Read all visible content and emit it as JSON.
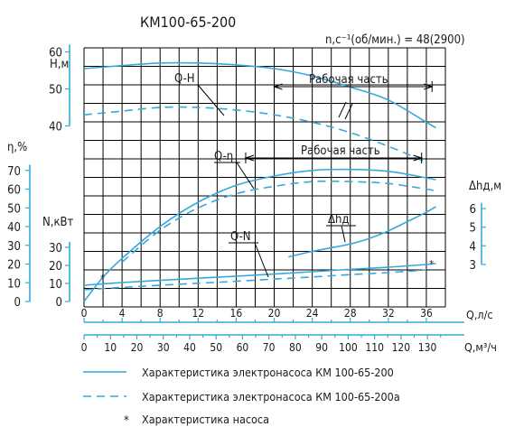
{
  "title": "КМ100-65-200",
  "speed_label": "n,с⁻¹(об/мин.) = 48(2900)",
  "chart_data": {
    "type": "line",
    "x": {
      "label_q_ls": "Q,л/с",
      "label_q_m3h": "Q,м³/ч",
      "range_ls": [
        0,
        38
      ],
      "ticks_ls": [
        "0",
        "4",
        "8",
        "12",
        "16",
        "20",
        "24",
        "28",
        "32",
        "36"
      ],
      "ticks_m3h": [
        "0",
        "10",
        "20",
        "30",
        "40",
        "50",
        "60",
        "70",
        "80",
        "90",
        "100",
        "110",
        "120",
        "130"
      ]
    },
    "axes": {
      "H": {
        "label": "H,м",
        "ticks": [
          "60",
          "50",
          "40"
        ]
      },
      "eta": {
        "label": "η,%",
        "ticks": [
          "70",
          "60",
          "50",
          "40",
          "30",
          "20",
          "10",
          "0"
        ]
      },
      "N": {
        "label": "N,кВт",
        "ticks": [
          "30",
          "20",
          "10",
          "0"
        ]
      },
      "dh": {
        "label": "Δhд,м",
        "ticks": [
          "6",
          "5",
          "4",
          "3"
        ]
      }
    },
    "grid": true,
    "series": [
      {
        "name": "Q-H",
        "style": "solid",
        "points": [
          [
            0,
            55.5
          ],
          [
            4,
            56.3
          ],
          [
            8,
            57
          ],
          [
            12,
            57
          ],
          [
            16,
            56.5
          ],
          [
            20,
            55.5
          ],
          [
            24,
            53.5
          ],
          [
            28,
            50.5
          ],
          [
            32,
            47
          ],
          [
            36,
            41
          ],
          [
            37,
            39.5
          ]
        ]
      },
      {
        "name": "Q-H",
        "style": "dashed",
        "points": [
          [
            0,
            43
          ],
          [
            4,
            44
          ],
          [
            8,
            45
          ],
          [
            12,
            45
          ],
          [
            16,
            44.3
          ],
          [
            20,
            43
          ],
          [
            24,
            41
          ],
          [
            28,
            38.2
          ],
          [
            32,
            34.5
          ],
          [
            35,
            31.3
          ],
          [
            36,
            30
          ]
        ]
      },
      {
        "name": "Q-η",
        "style": "solid",
        "points": [
          [
            0,
            0
          ],
          [
            2,
            13
          ],
          [
            4,
            23
          ],
          [
            8,
            40
          ],
          [
            12,
            53
          ],
          [
            16,
            62
          ],
          [
            20,
            67
          ],
          [
            24,
            70
          ],
          [
            28,
            70.5
          ],
          [
            32,
            69.5
          ],
          [
            36,
            66
          ],
          [
            37,
            65
          ]
        ]
      },
      {
        "name": "Q-η",
        "style": "dashed",
        "points": [
          [
            4,
            21
          ],
          [
            8,
            38
          ],
          [
            12,
            50
          ],
          [
            16,
            57.5
          ],
          [
            20,
            61.5
          ],
          [
            24,
            64
          ],
          [
            28,
            64
          ],
          [
            32,
            63
          ],
          [
            36,
            60
          ],
          [
            37,
            59
          ]
        ]
      },
      {
        "name": "Q-N",
        "style": "solid",
        "points": [
          [
            0,
            9
          ],
          [
            4,
            10.5
          ],
          [
            8,
            11.7
          ],
          [
            12,
            12.9
          ],
          [
            16,
            14
          ],
          [
            20,
            15.2
          ],
          [
            24,
            16.5
          ],
          [
            28,
            17.8
          ],
          [
            32,
            19
          ],
          [
            36,
            20.5
          ],
          [
            37,
            21
          ]
        ]
      },
      {
        "name": "Q-N",
        "style": "dashed",
        "points": [
          [
            0,
            6.5
          ],
          [
            4,
            7.8
          ],
          [
            8,
            9
          ],
          [
            12,
            10.1
          ],
          [
            16,
            11.2
          ],
          [
            20,
            12.4
          ],
          [
            24,
            13.6
          ],
          [
            28,
            14.9
          ],
          [
            32,
            16
          ],
          [
            36,
            17.5
          ]
        ]
      },
      {
        "name": "Δhд",
        "style": "solid",
        "points": [
          [
            21.5,
            3.4
          ],
          [
            24,
            3.7
          ],
          [
            28,
            4.1
          ],
          [
            30,
            4.4
          ],
          [
            32,
            4.8
          ],
          [
            34,
            5.3
          ],
          [
            36,
            5.8
          ],
          [
            37,
            6.1
          ]
        ]
      }
    ],
    "working_ranges": [
      {
        "label": "Рабочая часть",
        "q_from": 20,
        "q_to": 36.6
      },
      {
        "label": "Рабочая часть",
        "q_from": 17,
        "q_to": 35.5
      }
    ],
    "legend": [
      {
        "style": "solid",
        "label": "Характеристика электронасоса КМ 100-65-200"
      },
      {
        "style": "dashed",
        "label": "Характеристика электронасоса КМ 100-65-200а"
      },
      {
        "style": "marker",
        "symbol": "*",
        "label": "Характеристика насоса"
      }
    ],
    "colors": {
      "curve": "#35a9dc",
      "grid": "#000000",
      "text": "#1a1a1a"
    }
  }
}
